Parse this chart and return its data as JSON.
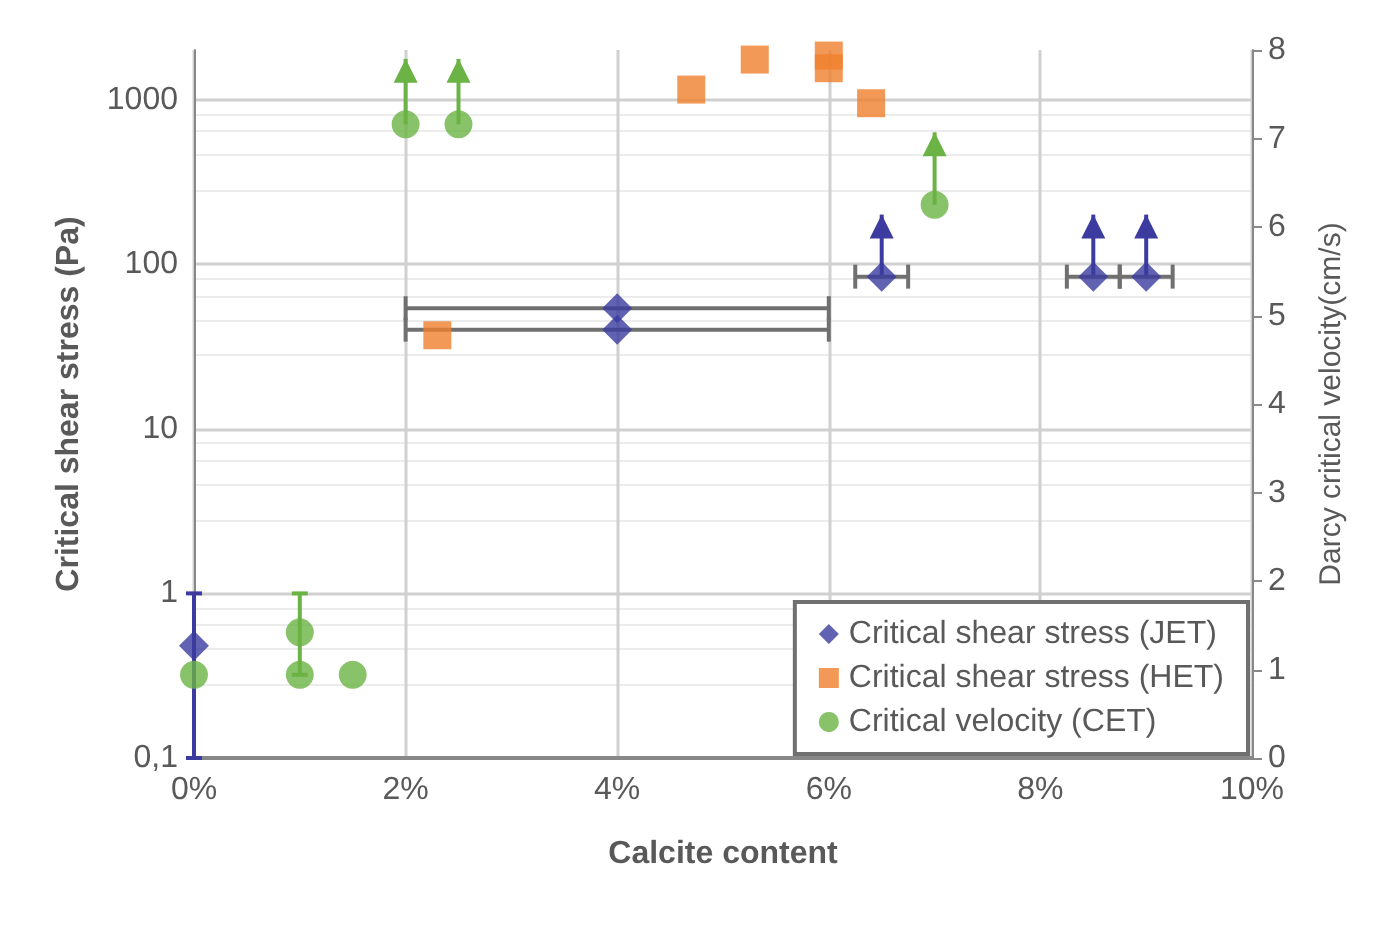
{
  "chart_data": {
    "type": "scatter",
    "xlabel": "Calcite content",
    "ylabel": "Critical shear stress (Pa)",
    "y2label": "Darcy critical velocity(cm/s)",
    "xlim": [
      0,
      10
    ],
    "xticks": [
      {
        "value": 0,
        "label": "0%"
      },
      {
        "value": 2,
        "label": "2%"
      },
      {
        "value": 4,
        "label": "4%"
      },
      {
        "value": 6,
        "label": "6%"
      },
      {
        "value": 8,
        "label": "8%"
      },
      {
        "value": 10,
        "label": "10%"
      }
    ],
    "ylim": [
      0.1,
      2000
    ],
    "yticks": [
      {
        "value": 0.1,
        "label": "0,1"
      },
      1,
      10,
      100,
      1000
    ],
    "log": "y",
    "y2lim": [
      0,
      8
    ],
    "y2ticks": [
      0,
      1,
      2,
      3,
      4,
      5,
      6,
      7,
      8
    ],
    "grid": true,
    "legend": "bottom right",
    "series": [
      {
        "name": "Critical shear stress (JET)",
        "color": "#3b3ba0",
        "marker": "diamond",
        "x": [
          0,
          4,
          4,
          6.5,
          8.5,
          9
        ],
        "values": [
          0.48,
          54,
          40,
          84,
          84,
          84
        ],
        "errors": [
          [
            0.1,
            1
          ],
          null,
          null,
          [
            84,
            200
          ],
          [
            84,
            200
          ],
          [
            84,
            200
          ]
        ],
        "xerrors": [
          null,
          [
            2,
            6
          ],
          [
            2,
            6
          ],
          0.25,
          0.25,
          0.25
        ]
      },
      {
        "name": "Critical shear stress (HET)",
        "color": "#f07f2e",
        "marker": "square",
        "x": [
          2.3,
          4.7,
          5.3,
          6,
          6,
          6.4
        ],
        "values": [
          37,
          1150,
          1750,
          1850,
          1550,
          950
        ]
      },
      {
        "name": "Critical velocity (CET)",
        "color": "#6ab344",
        "marker": "circle",
        "axis": "y2",
        "x": [
          0,
          1,
          1,
          1.5,
          2,
          2.5,
          7
        ],
        "values": [
          0.94,
          1.42,
          0.94,
          0.94,
          7.16,
          7.16,
          6.25
        ],
        "errors": [
          null,
          [
            0.94,
            1.86
          ],
          null,
          null,
          [
            7.16,
            7.9
          ],
          [
            7.16,
            7.9
          ],
          [
            6.25,
            7.07
          ]
        ]
      }
    ]
  }
}
